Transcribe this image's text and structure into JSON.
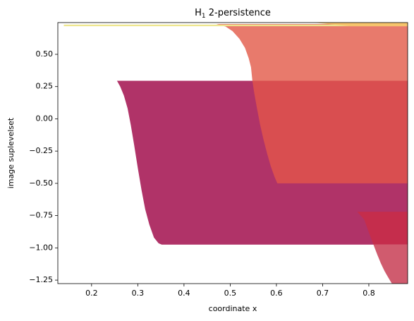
{
  "chart_data": {
    "type": "polygon",
    "title": [
      "H",
      "1",
      " 2-persistence"
    ],
    "xlabel": "coordinate x",
    "ylabel": "image suplevelset",
    "xlim": [
      0.127,
      0.884
    ],
    "ylim": [
      -1.277,
      0.746
    ],
    "xticks": [
      0.2,
      0.3,
      0.4,
      0.5,
      0.6,
      0.7,
      0.8
    ],
    "yticks": [
      {
        "value": 0.5,
        "label": "0.50"
      },
      {
        "value": 0.25,
        "label": "0.25"
      },
      {
        "value": 0,
        "label": "0.00"
      },
      {
        "value": -0.25,
        "label": "−0.25"
      },
      {
        "value": -0.5,
        "label": "−0.50"
      },
      {
        "value": -0.75,
        "label": "−0.75"
      },
      {
        "value": -1,
        "label": "−1.00"
      },
      {
        "value": -1.25,
        "label": "−1.25"
      }
    ],
    "series": [
      {
        "color": "#b03368",
        "x": [
          0.255,
          0.262,
          0.27,
          0.278,
          0.285,
          0.292,
          0.3,
          0.308,
          0.316,
          0.325,
          0.335,
          0.345,
          0.352,
          0.884,
          0.884
        ],
        "y": [
          0.295,
          0.25,
          0.18,
          0.08,
          -0.05,
          -0.2,
          -0.38,
          -0.55,
          -0.7,
          -0.82,
          -0.92,
          -0.965,
          -0.975,
          -0.975,
          0.295
        ]
      },
      {
        "color": "#e87a6c",
        "x": [
          0.47,
          0.49,
          0.505,
          0.52,
          0.532,
          0.54,
          0.545,
          0.548,
          0.884,
          0.884
        ],
        "y": [
          0.735,
          0.715,
          0.68,
          0.62,
          0.55,
          0.47,
          0.4,
          0.295,
          0.295,
          0.735
        ]
      },
      {
        "color": "#d94e50",
        "x": [
          0.548,
          0.552,
          0.558,
          0.565,
          0.572,
          0.58,
          0.588,
          0.596,
          0.602,
          0.884,
          0.884
        ],
        "y": [
          0.295,
          0.2,
          0.08,
          -0.05,
          -0.16,
          -0.27,
          -0.37,
          -0.45,
          -0.5,
          -0.5,
          0.295
        ]
      },
      {
        "color": "#c52d4c",
        "x": [
          0.775,
          0.79,
          0.8,
          0.81,
          0.884,
          0.884
        ],
        "y": [
          -0.72,
          -0.78,
          -0.88,
          -0.975,
          -0.975,
          -0.72
        ]
      },
      {
        "color": "#d05b6e",
        "x": [
          0.81,
          0.818,
          0.826,
          0.834,
          0.842,
          0.85,
          0.884,
          0.884
        ],
        "y": [
          -0.975,
          -1.05,
          -1.12,
          -1.18,
          -1.23,
          -1.277,
          -1.277,
          -0.975
        ]
      },
      {
        "color": "#eee58c",
        "x": [
          0.14,
          0.884,
          0.884,
          0.14
        ],
        "y": [
          0.718,
          0.718,
          0.73,
          0.73
        ]
      },
      {
        "color": "#f6c46c",
        "x": [
          0.68,
          0.884,
          0.884,
          0.76
        ],
        "y": [
          0.746,
          0.746,
          0.718,
          0.718
        ]
      }
    ]
  }
}
